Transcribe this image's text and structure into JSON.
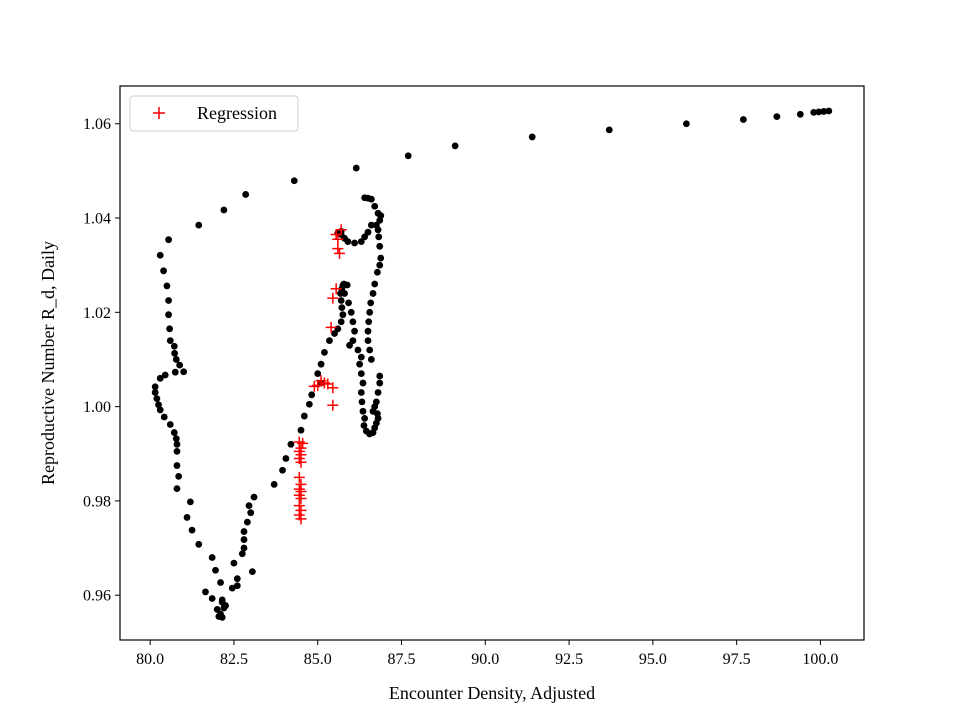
{
  "chart_data": {
    "type": "scatter",
    "title": "",
    "xlabel": "Encounter Density, Adjusted",
    "ylabel": "Reproductive Number R_d, Daily",
    "xlim": [
      79.1,
      101.3
    ],
    "ylim": [
      0.9505,
      1.068
    ],
    "xticks": [
      80.0,
      82.5,
      85.0,
      87.5,
      90.0,
      92.5,
      95.0,
      97.5,
      100.0
    ],
    "xtick_labels": [
      "80.0",
      "82.5",
      "85.0",
      "87.5",
      "90.0",
      "92.5",
      "95.0",
      "97.5",
      "100.0"
    ],
    "yticks": [
      0.96,
      0.98,
      1.0,
      1.02,
      1.04,
      1.06
    ],
    "ytick_labels": [
      "0.96",
      "0.98",
      "1.00",
      "1.02",
      "1.04",
      "1.06"
    ],
    "grid": false,
    "legend_position": "top-left",
    "series": [
      {
        "marker": "circle",
        "color": "#000000",
        "points": [
          [
            100.25,
            1.0627
          ],
          [
            100.1,
            1.0626
          ],
          [
            99.95,
            1.0625
          ],
          [
            99.8,
            1.0624
          ],
          [
            99.4,
            1.062
          ],
          [
            98.7,
            1.0615
          ],
          [
            97.7,
            1.0609
          ],
          [
            96.0,
            1.06
          ],
          [
            93.7,
            1.0587
          ],
          [
            91.4,
            1.0572
          ],
          [
            89.1,
            1.0553
          ],
          [
            87.7,
            1.0532
          ],
          [
            86.15,
            1.0506
          ],
          [
            84.3,
            1.0479
          ],
          [
            82.85,
            1.045
          ],
          [
            82.2,
            1.0417
          ],
          [
            81.45,
            1.0385
          ],
          [
            80.55,
            1.0354
          ],
          [
            80.3,
            1.0321
          ],
          [
            80.4,
            1.0288
          ],
          [
            80.5,
            1.0256
          ],
          [
            80.55,
            1.0225
          ],
          [
            80.55,
            1.0195
          ],
          [
            80.58,
            1.0165
          ],
          [
            80.6,
            1.014
          ],
          [
            80.72,
            1.0128
          ],
          [
            80.73,
            1.0113
          ],
          [
            80.78,
            1.01
          ],
          [
            80.88,
            1.0088
          ],
          [
            81.0,
            1.0074
          ],
          [
            80.75,
            1.0073
          ],
          [
            80.45,
            1.0067
          ],
          [
            80.3,
            1.006
          ],
          [
            80.15,
            1.0042
          ],
          [
            80.15,
            1.003
          ],
          [
            80.2,
            1.0017
          ],
          [
            80.25,
            1.0004
          ],
          [
            80.3,
            0.9993
          ],
          [
            80.42,
            0.9978
          ],
          [
            80.6,
            0.9962
          ],
          [
            80.72,
            0.9945
          ],
          [
            80.78,
            0.9932
          ],
          [
            80.8,
            0.992
          ],
          [
            80.8,
            0.9905
          ],
          [
            80.8,
            0.9875
          ],
          [
            80.85,
            0.9852
          ],
          [
            80.8,
            0.9826
          ],
          [
            81.2,
            0.9798
          ],
          [
            81.1,
            0.9765
          ],
          [
            81.25,
            0.9738
          ],
          [
            81.45,
            0.9708
          ],
          [
            81.85,
            0.968
          ],
          [
            81.95,
            0.9653
          ],
          [
            82.1,
            0.9627
          ],
          [
            81.65,
            0.9607
          ],
          [
            81.85,
            0.9593
          ],
          [
            82.15,
            0.9585
          ],
          [
            82.2,
            0.9573
          ],
          [
            82.0,
            0.957
          ],
          [
            82.05,
            0.9555
          ],
          [
            82.15,
            0.9553
          ],
          [
            82.1,
            0.956
          ],
          [
            82.25,
            0.9578
          ],
          [
            82.15,
            0.959
          ],
          [
            82.45,
            0.9615
          ],
          [
            82.6,
            0.962
          ],
          [
            82.6,
            0.9635
          ],
          [
            82.5,
            0.9668
          ],
          [
            82.75,
            0.9688
          ],
          [
            82.8,
            0.97
          ],
          [
            82.8,
            0.9718
          ],
          [
            82.8,
            0.9735
          ],
          [
            82.9,
            0.9755
          ],
          [
            83.0,
            0.9775
          ],
          [
            82.95,
            0.979
          ],
          [
            83.1,
            0.9808
          ],
          [
            83.05,
            0.965
          ],
          [
            83.7,
            0.9835
          ],
          [
            83.95,
            0.9865
          ],
          [
            84.05,
            0.989
          ],
          [
            84.2,
            0.992
          ],
          [
            84.5,
            0.995
          ],
          [
            84.6,
            0.998
          ],
          [
            84.75,
            1.0005
          ],
          [
            84.82,
            1.0025
          ],
          [
            85.1,
            1.005
          ],
          [
            85.0,
            1.007
          ],
          [
            85.1,
            1.009
          ],
          [
            85.2,
            1.0115
          ],
          [
            85.35,
            1.014
          ],
          [
            85.5,
            1.0155
          ],
          [
            85.6,
            1.0165
          ],
          [
            85.7,
            1.018
          ],
          [
            85.75,
            1.0195
          ],
          [
            85.72,
            1.021
          ],
          [
            85.7,
            1.0225
          ],
          [
            85.68,
            1.024
          ],
          [
            85.72,
            1.025
          ],
          [
            85.75,
            1.0257
          ],
          [
            85.78,
            1.026
          ],
          [
            85.88,
            1.0258
          ],
          [
            85.8,
            1.024
          ],
          [
            85.92,
            1.022
          ],
          [
            86.0,
            1.02
          ],
          [
            86.05,
            1.018
          ],
          [
            86.1,
            1.016
          ],
          [
            86.05,
            1.014
          ],
          [
            85.95,
            1.013
          ],
          [
            86.2,
            1.012
          ],
          [
            86.3,
            1.0105
          ],
          [
            86.25,
            1.009
          ],
          [
            86.3,
            1.007
          ],
          [
            86.35,
            1.005
          ],
          [
            86.3,
            1.003
          ],
          [
            86.32,
            1.001
          ],
          [
            86.35,
            0.999
          ],
          [
            86.4,
            0.9975
          ],
          [
            86.38,
            0.996
          ],
          [
            86.45,
            0.9948
          ],
          [
            86.55,
            0.9942
          ],
          [
            86.65,
            0.9945
          ],
          [
            86.7,
            0.9955
          ],
          [
            86.75,
            0.9965
          ],
          [
            86.8,
            0.9975
          ],
          [
            86.78,
            0.9985
          ],
          [
            86.65,
            0.999
          ],
          [
            86.7,
            1.0
          ],
          [
            86.75,
            1.001
          ],
          [
            86.8,
            1.003
          ],
          [
            86.85,
            1.005
          ],
          [
            86.85,
            1.0065
          ],
          [
            86.6,
            1.01
          ],
          [
            86.55,
            1.012
          ],
          [
            86.5,
            1.014
          ],
          [
            86.5,
            1.016
          ],
          [
            86.52,
            1.018
          ],
          [
            86.55,
            1.02
          ],
          [
            86.58,
            1.022
          ],
          [
            86.65,
            1.024
          ],
          [
            86.7,
            1.026
          ],
          [
            86.78,
            1.0285
          ],
          [
            86.85,
            1.03
          ],
          [
            86.88,
            1.0315
          ],
          [
            86.85,
            1.034
          ],
          [
            86.82,
            1.036
          ],
          [
            86.8,
            1.0375
          ],
          [
            86.75,
            1.0385
          ],
          [
            86.85,
            1.0395
          ],
          [
            86.88,
            1.0405
          ],
          [
            86.8,
            1.041
          ],
          [
            86.7,
            1.0425
          ],
          [
            86.6,
            1.044
          ],
          [
            86.5,
            1.0442
          ],
          [
            86.4,
            1.0443
          ],
          [
            86.6,
            1.0385
          ],
          [
            86.5,
            1.037
          ],
          [
            86.4,
            1.036
          ],
          [
            86.3,
            1.035
          ],
          [
            86.1,
            1.0347
          ],
          [
            85.9,
            1.035
          ],
          [
            85.8,
            1.0357
          ],
          [
            85.7,
            1.0365
          ],
          [
            85.6,
            1.0368
          ],
          [
            85.7,
            1.0372
          ]
        ]
      },
      {
        "name": "Regression",
        "marker": "plus",
        "color": "#ff0000",
        "points": [
          [
            85.7,
            1.0375
          ],
          [
            85.55,
            1.0365
          ],
          [
            85.6,
            1.0355
          ],
          [
            85.6,
            1.0335
          ],
          [
            85.65,
            1.0325
          ],
          [
            85.55,
            1.025
          ],
          [
            85.45,
            1.023
          ],
          [
            85.4,
            1.0168
          ],
          [
            85.1,
            1.0055
          ],
          [
            85.2,
            1.005
          ],
          [
            85.3,
            1.0048
          ],
          [
            84.9,
            1.0043
          ],
          [
            85.0,
            1.0045
          ],
          [
            85.45,
            1.004
          ],
          [
            85.45,
            1.0003
          ],
          [
            84.45,
            0.9925
          ],
          [
            84.55,
            0.9922
          ],
          [
            84.5,
            0.9912
          ],
          [
            84.45,
            0.9905
          ],
          [
            84.5,
            0.9898
          ],
          [
            84.45,
            0.989
          ],
          [
            84.5,
            0.9882
          ],
          [
            84.45,
            0.985
          ],
          [
            84.5,
            0.9835
          ],
          [
            84.45,
            0.9825
          ],
          [
            84.5,
            0.982
          ],
          [
            84.45,
            0.9812
          ],
          [
            84.5,
            0.9805
          ],
          [
            84.45,
            0.979
          ],
          [
            84.5,
            0.978
          ],
          [
            84.45,
            0.977
          ],
          [
            84.5,
            0.9762
          ]
        ]
      }
    ]
  }
}
